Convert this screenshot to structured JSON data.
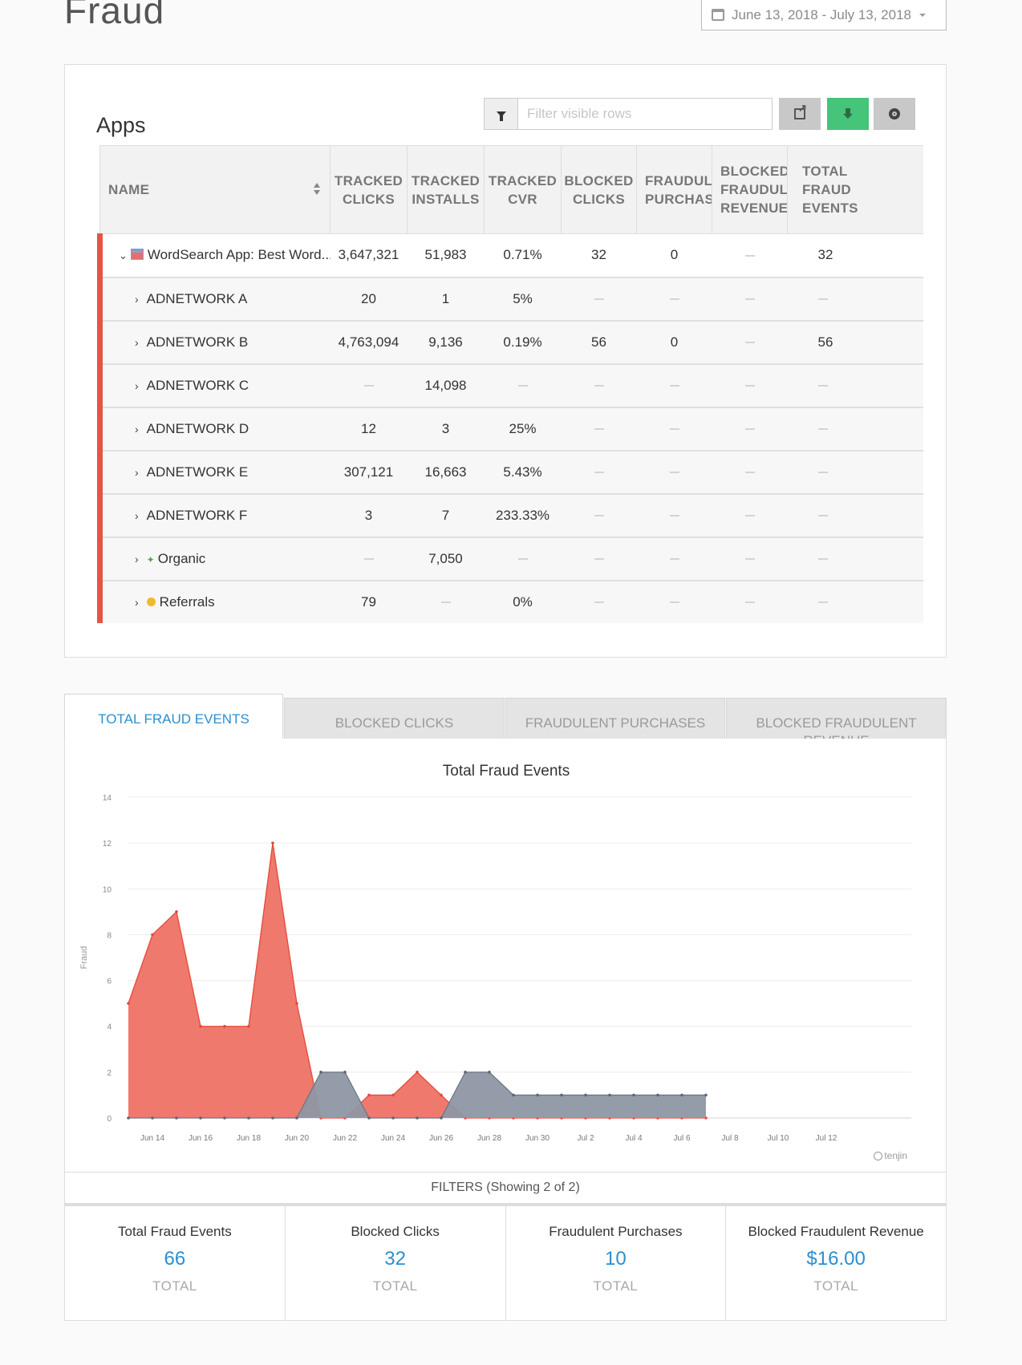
{
  "page": {
    "title": "Fraud",
    "date_range": "June 13, 2018 - July 13, 2018"
  },
  "apps_card": {
    "title": "Apps",
    "filter_placeholder": "Filter visible rows",
    "columns": [
      {
        "line1": "NAME",
        "line2": "",
        "line3": ""
      },
      {
        "line1": "TRACKED",
        "line2": "CLICKS",
        "line3": ""
      },
      {
        "line1": "TRACKED",
        "line2": "INSTALLS",
        "line3": ""
      },
      {
        "line1": "TRACKED",
        "line2": "CVR",
        "line3": ""
      },
      {
        "line1": "BLOCKED",
        "line2": "CLICKS",
        "line3": ""
      },
      {
        "line1": "FRAUDULE",
        "line2": "PURCHASE",
        "line3": ""
      },
      {
        "line1": "BLOCKED",
        "line2": "FRAUDULE",
        "line3": "REVENUE"
      },
      {
        "line1": "TOTAL",
        "line2": "FRAUD",
        "line3": "EVENTS"
      }
    ],
    "app_row": {
      "name": "WordSearch App: Best Word...",
      "values": [
        "3,647,321",
        "51,983",
        "0.71%",
        "32",
        "0",
        "—",
        "32"
      ]
    },
    "rows": [
      {
        "name": "ADNETWORK A",
        "icon": "none",
        "values": [
          "20",
          "1",
          "5%",
          "—",
          "—",
          "—",
          "—"
        ]
      },
      {
        "name": "ADNETWORK B",
        "icon": "none",
        "values": [
          "4,763,094",
          "9,136",
          "0.19%",
          "56",
          "0",
          "—",
          "56"
        ]
      },
      {
        "name": "ADNETWORK C",
        "icon": "none",
        "values": [
          "—",
          "14,098",
          "—",
          "—",
          "—",
          "—",
          "—"
        ]
      },
      {
        "name": "ADNETWORK D",
        "icon": "none",
        "values": [
          "12",
          "3",
          "25%",
          "—",
          "—",
          "—",
          "—"
        ]
      },
      {
        "name": "ADNETWORK E",
        "icon": "none",
        "values": [
          "307,121",
          "16,663",
          "5.43%",
          "—",
          "—",
          "—",
          "—"
        ]
      },
      {
        "name": "ADNETWORK F",
        "icon": "none",
        "values": [
          "3",
          "7",
          "233.33%",
          "—",
          "—",
          "—",
          "—"
        ]
      },
      {
        "name": "Organic",
        "icon": "leaf-icon",
        "values": [
          "—",
          "7,050",
          "—",
          "—",
          "—",
          "—",
          "—"
        ]
      },
      {
        "name": "Referrals",
        "icon": "referral-icon",
        "values": [
          "79",
          "—",
          "0%",
          "—",
          "—",
          "—",
          "—"
        ]
      }
    ]
  },
  "tabs": [
    {
      "label": "TOTAL FRAUD EVENTS",
      "active": true
    },
    {
      "label": "BLOCKED CLICKS",
      "active": false
    },
    {
      "label": "FRAUDULENT PURCHASES",
      "active": false
    },
    {
      "label": "BLOCKED FRAUDULENT REVENUE",
      "active": false
    }
  ],
  "chart_data": {
    "type": "area",
    "title": "Total Fraud Events",
    "ylabel": "Fraud",
    "ylim": [
      0,
      14
    ],
    "yticks": [
      0,
      2,
      4,
      6,
      8,
      10,
      12,
      14
    ],
    "x_tick_labels": [
      "Jun 14",
      "Jun 16",
      "Jun 18",
      "Jun 20",
      "Jun 22",
      "Jun 24",
      "Jun 26",
      "Jun 28",
      "Jun 30",
      "Jul 2",
      "Jul 4",
      "Jul 6",
      "Jul 8",
      "Jul 10",
      "Jul 12"
    ],
    "x": [
      "Jun 13",
      "Jun 14",
      "Jun 15",
      "Jun 16",
      "Jun 17",
      "Jun 18",
      "Jun 19",
      "Jun 20",
      "Jun 21",
      "Jun 22",
      "Jun 23",
      "Jun 24",
      "Jun 25",
      "Jun 26",
      "Jun 27",
      "Jun 28",
      "Jun 29",
      "Jun 30",
      "Jul 1",
      "Jul 2",
      "Jul 3",
      "Jul 4",
      "Jul 5",
      "Jul 6",
      "Jul 7",
      "Jul 8",
      "Jul 9",
      "Jul 10",
      "Jul 11",
      "Jul 12",
      "Jul 13"
    ],
    "series": [
      {
        "color": "#ee7265",
        "values": [
          5,
          8,
          9,
          4,
          4,
          4,
          12,
          5,
          0,
          0,
          1,
          1,
          2,
          1,
          0,
          0,
          0,
          0,
          0,
          0,
          0,
          0,
          0,
          0,
          0,
          null,
          null,
          null,
          null,
          null,
          null
        ]
      },
      {
        "color": "#8f97a4",
        "values": [
          0,
          0,
          0,
          0,
          0,
          0,
          0,
          0,
          2,
          2,
          0,
          0,
          0,
          0,
          2,
          2,
          1,
          1,
          1,
          1,
          1,
          1,
          1,
          1,
          1,
          null,
          null,
          null,
          null,
          null,
          null
        ]
      }
    ]
  },
  "branding": {
    "tenjin": "tenjin"
  },
  "filters": {
    "label": "FILTERS (Showing 2 of 2)"
  },
  "totals": [
    {
      "label": "Total Fraud Events",
      "value": "66",
      "sub": "TOTAL"
    },
    {
      "label": "Blocked Clicks",
      "value": "32",
      "sub": "TOTAL"
    },
    {
      "label": "Fraudulent Purchases",
      "value": "10",
      "sub": "TOTAL"
    },
    {
      "label": "Blocked Fraudulent Revenue",
      "value": "$16.00",
      "sub": "TOTAL"
    }
  ]
}
